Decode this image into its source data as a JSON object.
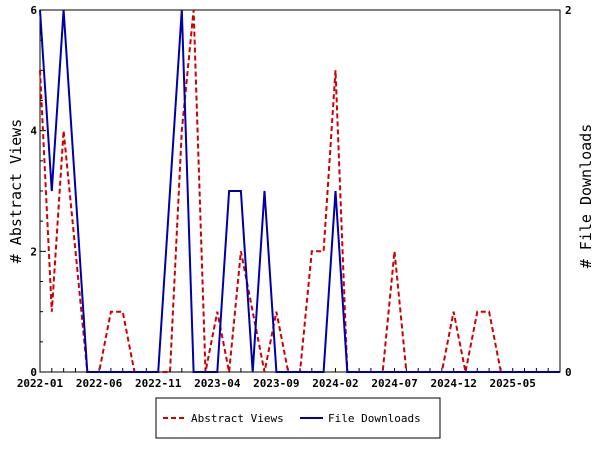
{
  "chart_data": {
    "type": "line",
    "x": [
      "2022-01",
      "2022-02",
      "2022-03",
      "2022-04",
      "2022-05",
      "2022-06",
      "2022-07",
      "2022-08",
      "2022-09",
      "2022-10",
      "2022-11",
      "2022-12",
      "2023-01",
      "2023-02",
      "2023-03",
      "2023-04",
      "2023-05",
      "2023-06",
      "2023-07",
      "2023-08",
      "2023-09",
      "2023-10",
      "2023-11",
      "2023-12",
      "2024-01",
      "2024-02",
      "2024-03",
      "2024-04",
      "2024-05",
      "2024-06",
      "2024-07",
      "2024-08",
      "2024-09",
      "2024-10",
      "2024-11",
      "2024-12",
      "2025-01",
      "2025-02",
      "2025-03",
      "2025-04",
      "2025-05",
      "2025-06",
      "2025-07",
      "2025-08",
      "2025-09"
    ],
    "xticks": [
      "2022-01",
      "2022-06",
      "2022-11",
      "2023-04",
      "2023-09",
      "2024-02",
      "2024-07",
      "2024-12",
      "2025-05"
    ],
    "xlim": [
      "2022-01",
      "2025-09"
    ],
    "series": [
      {
        "name": "Abstract Views",
        "axis": "left",
        "color": "#cc0000",
        "style": "dashed",
        "values": [
          5,
          1,
          4,
          2,
          0,
          0,
          1,
          1,
          0,
          0,
          0,
          0,
          4,
          6,
          0,
          1,
          0,
          2,
          1,
          0,
          1,
          0,
          0,
          2,
          2,
          5,
          0,
          0,
          0,
          0,
          2,
          0,
          0,
          0,
          0,
          1,
          0,
          1,
          1,
          0,
          0,
          0,
          0,
          0,
          0
        ]
      },
      {
        "name": "File Downloads",
        "axis": "right",
        "color": "#0000aa",
        "style": "solid",
        "values": [
          2,
          1,
          2,
          1,
          0,
          0,
          0,
          0,
          0,
          0,
          0,
          1,
          2,
          0,
          0,
          0,
          1,
          1,
          0,
          1,
          0,
          0,
          0,
          0,
          0,
          1,
          0,
          0,
          0,
          0,
          0,
          0,
          0,
          0,
          0,
          0,
          0,
          0,
          0,
          0,
          0,
          0,
          0,
          0,
          0
        ]
      }
    ],
    "ylabel_left": "# Abstract Views",
    "ylabel_right": "# File Downloads",
    "ylim_left": [
      0,
      6
    ],
    "yticks_left": [
      "0",
      "2",
      "4",
      "6"
    ],
    "ylim_right": [
      0,
      2
    ],
    "yticks_right": [
      "0",
      "2"
    ],
    "grid": false,
    "legend_position": "bottom-center"
  }
}
